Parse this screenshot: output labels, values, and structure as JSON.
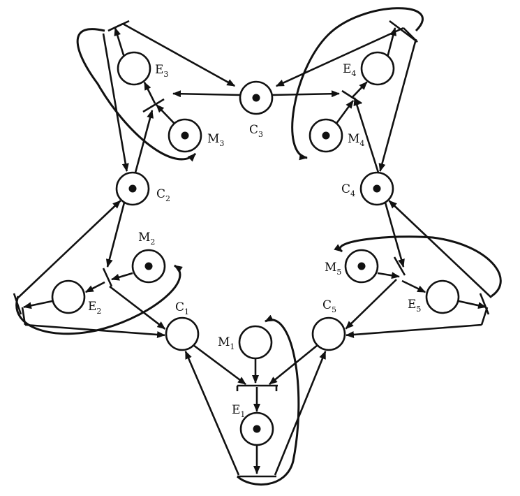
{
  "diagram": {
    "places": [
      {
        "id": "C3",
        "letter": "C",
        "sub": "3",
        "token": true
      },
      {
        "id": "E3",
        "letter": "E",
        "sub": "3",
        "token": false
      },
      {
        "id": "M3",
        "letter": "M",
        "sub": "3",
        "token": true
      },
      {
        "id": "E4",
        "letter": "E",
        "sub": "4",
        "token": false
      },
      {
        "id": "M4",
        "letter": "M",
        "sub": "4",
        "token": true
      },
      {
        "id": "C2",
        "letter": "C",
        "sub": "2",
        "token": true
      },
      {
        "id": "C4",
        "letter": "C",
        "sub": "4",
        "token": true
      },
      {
        "id": "M2",
        "letter": "M",
        "sub": "2",
        "token": true
      },
      {
        "id": "M5",
        "letter": "M",
        "sub": "5",
        "token": true
      },
      {
        "id": "E2",
        "letter": "E",
        "sub": "2",
        "token": false
      },
      {
        "id": "E5",
        "letter": "E",
        "sub": "5",
        "token": false
      },
      {
        "id": "C1",
        "letter": "C",
        "sub": "1",
        "token": false
      },
      {
        "id": "C5",
        "letter": "C",
        "sub": "5",
        "token": false
      },
      {
        "id": "M1",
        "letter": "M",
        "sub": "1",
        "token": false
      },
      {
        "id": "E1",
        "letter": "E",
        "sub": "1",
        "token": true
      }
    ]
  }
}
